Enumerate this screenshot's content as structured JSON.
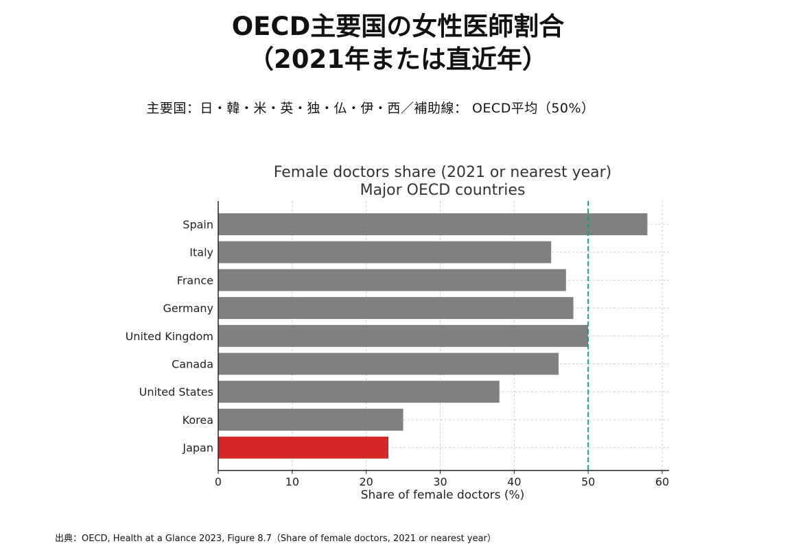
{
  "header": {
    "title_line1": "OECD主要国の女性医師割合",
    "title_line2": "（2021年または直近年）",
    "subtitle": "主要国：日・韓・米・英・独・仏・伊・西／補助線： OECD平均（50%）"
  },
  "source": {
    "text": "出典：OECD, Health at a Glance 2023, Figure 8.7（Share of female doctors, 2021 or nearest year）"
  },
  "chart_data": {
    "type": "bar",
    "orientation": "horizontal",
    "title": "Female doctors share (2021 or nearest year)",
    "subtitle": "Major OECD countries",
    "xlabel": "Share of female doctors (%)",
    "ylabel": "",
    "categories": [
      "Spain",
      "Italy",
      "France",
      "Germany",
      "United Kingdom",
      "Canada",
      "United States",
      "Korea",
      "Japan"
    ],
    "values": [
      58,
      45,
      47,
      48,
      50,
      46,
      38,
      25,
      23
    ],
    "highlight": "Japan",
    "xlim": [
      0,
      60
    ],
    "xticks": [
      0,
      10,
      20,
      30,
      40,
      50,
      60
    ],
    "reference_line": {
      "value": 50,
      "style": "dashed"
    },
    "grid": true,
    "colors": {
      "bar": "#808080",
      "highlight": "#d62728",
      "reference": "#1a9e77",
      "grid": "#cccccc",
      "axis": "#222222"
    }
  }
}
